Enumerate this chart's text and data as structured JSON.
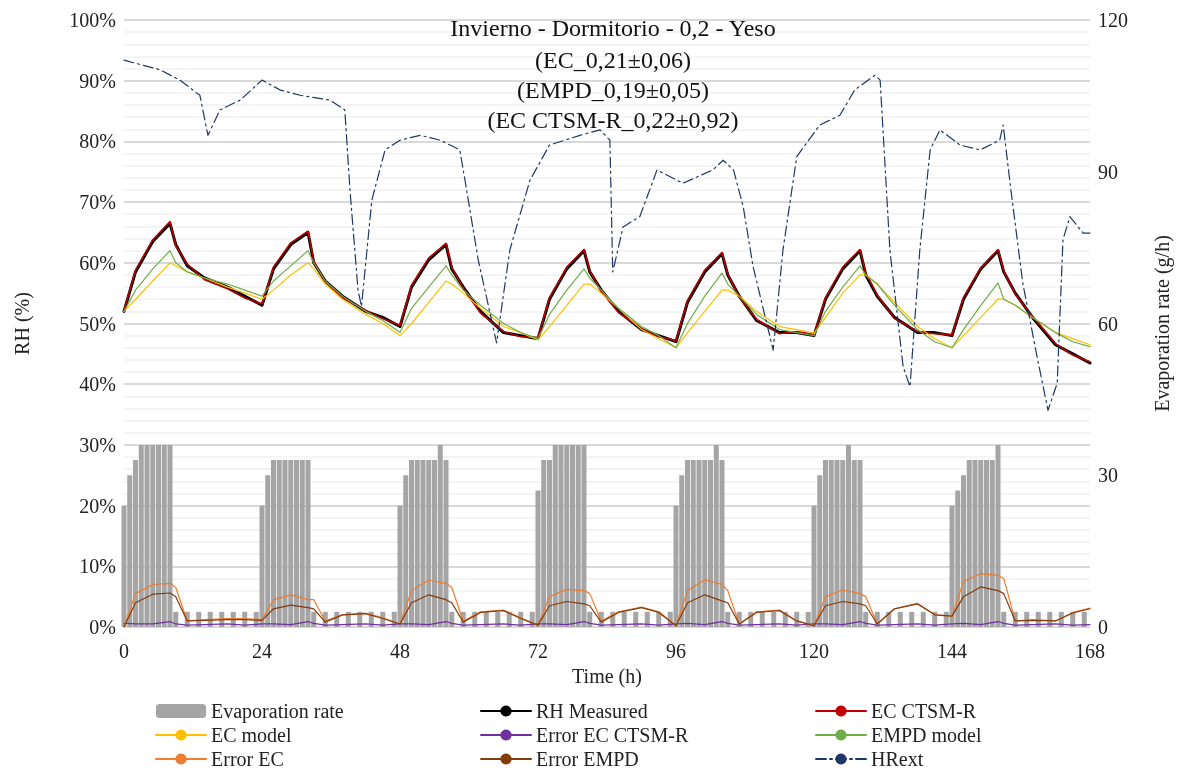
{
  "chart_data": {
    "type": "line",
    "title": "Invierno - Dormitorio - 0,2 - Yeso",
    "subtitle": "(EC_0,21±0,06)\n(EMPD_0,19±0,05)\n(EC CTSM-R_0,22±0,92)",
    "xlabel": "Time (h)",
    "ylabel": "RH (%)",
    "y2label": "Evaporation rate (g/h)",
    "xlim": [
      0,
      168
    ],
    "xticks": [
      0,
      24,
      48,
      72,
      96,
      120,
      144,
      168
    ],
    "ylim": [
      0,
      100
    ],
    "yticks": [
      {
        "value": 0,
        "label": "0%"
      },
      {
        "value": 10,
        "label": "10%"
      },
      {
        "value": 20,
        "label": "20%"
      },
      {
        "value": 30,
        "label": "30%"
      },
      {
        "value": 40,
        "label": "40%"
      },
      {
        "value": 50,
        "label": "50%"
      },
      {
        "value": 60,
        "label": "60%"
      },
      {
        "value": 70,
        "label": "70%"
      },
      {
        "value": 80,
        "label": "80%"
      },
      {
        "value": 90,
        "label": "90%"
      },
      {
        "value": 100,
        "label": "100%"
      }
    ],
    "y2lim": [
      0,
      120
    ],
    "y2ticks": [
      0,
      30,
      60,
      90,
      120
    ],
    "grid": "y",
    "legend": "bottom",
    "marker": "none",
    "x": [
      0,
      2,
      5,
      8,
      9,
      11,
      14,
      18,
      21,
      24,
      26,
      29,
      32,
      33,
      35,
      38,
      42,
      45,
      48,
      50,
      53,
      56,
      57,
      59,
      62,
      66,
      69,
      72,
      74,
      77,
      80,
      81,
      83,
      86,
      90,
      93,
      96,
      98,
      101,
      104,
      105,
      107,
      110,
      114,
      117,
      120,
      122,
      125,
      128,
      129,
      131,
      134,
      138,
      141,
      144,
      146,
      149,
      152,
      153,
      155,
      158,
      162,
      165,
      168
    ],
    "series": [
      {
        "name": "Evaporation rate",
        "type": "bar",
        "axis": "y2",
        "color": "#a5a5a5",
        "x": [
          0,
          1,
          2,
          3,
          4,
          5,
          6,
          7,
          8,
          9,
          10,
          11,
          12,
          13,
          14,
          15,
          16,
          17,
          18,
          19,
          20,
          21,
          22,
          23,
          24,
          25,
          26,
          27,
          28,
          29,
          30,
          31,
          32,
          33,
          34,
          35,
          36,
          37,
          38,
          39,
          40,
          41,
          42,
          43,
          44,
          45,
          46,
          47,
          48,
          49,
          50,
          51,
          52,
          53,
          54,
          55,
          56,
          57,
          58,
          59,
          60,
          61,
          62,
          63,
          64,
          65,
          66,
          67,
          68,
          69,
          70,
          71,
          72,
          73,
          74,
          75,
          76,
          77,
          78,
          79,
          80,
          81,
          82,
          83,
          84,
          85,
          86,
          87,
          88,
          89,
          90,
          91,
          92,
          93,
          94,
          95,
          96,
          97,
          98,
          99,
          100,
          101,
          102,
          103,
          104,
          105,
          106,
          107,
          108,
          109,
          110,
          111,
          112,
          113,
          114,
          115,
          116,
          117,
          118,
          119,
          120,
          121,
          122,
          123,
          124,
          125,
          126,
          127,
          128,
          129,
          130,
          131,
          132,
          133,
          134,
          135,
          136,
          137,
          138,
          139,
          140,
          141,
          142,
          143,
          144,
          145,
          146,
          147,
          148,
          149,
          150,
          151,
          152,
          153,
          154,
          155,
          156,
          157,
          158,
          159,
          160,
          161,
          162,
          163,
          164,
          165,
          166,
          167
        ],
        "values": [
          24,
          30,
          33,
          36,
          36,
          36,
          36,
          36,
          36,
          3,
          0,
          3,
          0,
          3,
          0,
          3,
          0,
          3,
          0,
          3,
          0,
          3,
          0,
          3,
          24,
          30,
          33,
          33,
          33,
          33,
          33,
          33,
          33,
          3,
          0,
          3,
          0,
          3,
          0,
          3,
          0,
          3,
          0,
          3,
          0,
          3,
          0,
          3,
          24,
          30,
          33,
          33,
          33,
          33,
          33,
          36,
          33,
          3,
          0,
          3,
          0,
          3,
          0,
          3,
          0,
          3,
          0,
          3,
          0,
          3,
          0,
          3,
          27,
          33,
          33,
          36,
          36,
          36,
          36,
          36,
          36,
          3,
          0,
          3,
          0,
          3,
          0,
          3,
          0,
          3,
          0,
          3,
          0,
          3,
          0,
          3,
          24,
          30,
          33,
          33,
          33,
          33,
          33,
          36,
          33,
          3,
          0,
          3,
          0,
          3,
          0,
          3,
          0,
          3,
          0,
          3,
          0,
          3,
          0,
          3,
          24,
          30,
          33,
          33,
          33,
          33,
          36,
          33,
          33,
          3,
          0,
          3,
          0,
          3,
          0,
          3,
          0,
          3,
          0,
          3,
          0,
          3,
          0,
          3,
          24,
          27,
          30,
          33,
          33,
          33,
          33,
          33,
          36,
          3,
          0,
          3,
          0,
          3,
          0,
          3,
          0,
          3,
          0,
          3,
          0,
          3,
          0,
          3
        ]
      },
      {
        "name": "RH Measured",
        "color": "#000000",
        "values": [
          52,
          58.5,
          63.5,
          66.5,
          63,
          59.5,
          57.5,
          56,
          54.5,
          53,
          59,
          63,
          65,
          60,
          57,
          54.5,
          52,
          51,
          49.5,
          56,
          60.5,
          63,
          59,
          56,
          52,
          48.5,
          48,
          47.5,
          54,
          59,
          62,
          58.5,
          55.5,
          52,
          49,
          48,
          47,
          53.5,
          58.5,
          61.5,
          58,
          54.5,
          50.5,
          48.5,
          48.5,
          48,
          54,
          59,
          62,
          58,
          54.5,
          51,
          48.5,
          48.5,
          48,
          54,
          59,
          62,
          58.5,
          55,
          51,
          46.5,
          45,
          43.5
        ]
      },
      {
        "name": "EC CTSM-R",
        "color": "#c00000",
        "values": [
          52.2,
          58.8,
          63.8,
          66.8,
          62.8,
          59.8,
          57.2,
          55.7,
          54.2,
          53.2,
          59.3,
          63.3,
          65.2,
          60.3,
          56.8,
          54.2,
          52.2,
          50.8,
          49.7,
          56.3,
          60.8,
          63.2,
          59.3,
          55.8,
          51.7,
          48.7,
          47.8,
          47.7,
          54.3,
          59.3,
          62.2,
          58.7,
          55.3,
          51.8,
          49.2,
          47.8,
          47.2,
          53.8,
          58.8,
          61.7,
          58.2,
          54.3,
          50.7,
          48.3,
          48.7,
          48.2,
          54.3,
          59.3,
          62.2,
          58.3,
          54.7,
          50.8,
          48.7,
          48.3,
          48.2,
          54.3,
          59.2,
          62.2,
          58.7,
          54.8,
          51.2,
          46.7,
          44.8,
          43.7
        ]
      },
      {
        "name": "EC model",
        "color": "#ffc000",
        "values": [
          52,
          54,
          57,
          60,
          59.5,
          58.5,
          57.5,
          56,
          55,
          54,
          55.5,
          58,
          60,
          59,
          56.5,
          54,
          51.5,
          50,
          48,
          50,
          53.5,
          57,
          56.5,
          55,
          52.5,
          49.5,
          48.5,
          47.3,
          49.5,
          53,
          56.5,
          56.5,
          55,
          52.5,
          49,
          47.5,
          46,
          48.5,
          52,
          55.5,
          55.5,
          54.5,
          52,
          49.5,
          49,
          48.4,
          51,
          55,
          58,
          58,
          56.5,
          53.5,
          49.5,
          47.5,
          46,
          48,
          51,
          54,
          54,
          53,
          51,
          48.5,
          47.5,
          46.5
        ]
      },
      {
        "name": "Error EC CTSM-R",
        "color": "#7030a0",
        "values": [
          0.6,
          0.5,
          0.5,
          0.9,
          0.5,
          0.3,
          0.4,
          0.5,
          0.3,
          0.5,
          0.5,
          0.4,
          0.9,
          0.6,
          0.3,
          0.4,
          0.5,
          0.3,
          0.5,
          0.5,
          0.4,
          0.9,
          0.6,
          0.3,
          0.4,
          0.5,
          0.3,
          0.5,
          0.5,
          0.4,
          0.9,
          0.6,
          0.3,
          0.4,
          0.5,
          0.3,
          0.5,
          0.6,
          0.4,
          0.9,
          0.6,
          0.3,
          0.4,
          0.5,
          0.3,
          0.5,
          0.5,
          0.4,
          0.9,
          0.6,
          0.3,
          0.4,
          0.5,
          0.3,
          0.5,
          0.6,
          0.4,
          0.9,
          0.6,
          0.3,
          0.4,
          0.5,
          0.3,
          0.4
        ]
      },
      {
        "name": "EMPD model",
        "color": "#70ad47",
        "values": [
          52,
          55.5,
          59,
          62,
          60,
          58.5,
          57.5,
          56.5,
          55.5,
          54.5,
          57,
          59.5,
          62,
          60,
          57,
          54.5,
          52,
          50.5,
          48.5,
          52.5,
          56,
          59.5,
          58,
          55.5,
          53,
          50,
          48.5,
          47.5,
          51.5,
          55.5,
          59,
          57.5,
          55.5,
          52.5,
          49.5,
          48,
          46,
          50,
          54.5,
          58.3,
          56.5,
          54.5,
          51.5,
          49,
          48.5,
          48,
          52,
          56,
          59.5,
          58,
          56.5,
          53,
          49,
          47,
          46,
          49,
          53,
          56.7,
          54,
          53,
          51,
          48.5,
          47,
          46.2
        ]
      },
      {
        "name": "Error EC",
        "color": "#ed7d31",
        "values": [
          0,
          5.5,
          7,
          7.2,
          6.5,
          1,
          1.2,
          1.4,
          1.4,
          1.2,
          4.5,
          5.3,
          4.5,
          4.5,
          1,
          2,
          2.3,
          1.5,
          0.5,
          6,
          7.7,
          7.2,
          6.5,
          1,
          2.5,
          2.8,
          1.5,
          0.3,
          5,
          6.2,
          6,
          5.5,
          1,
          2.5,
          3.3,
          2.5,
          0.2,
          6,
          7.8,
          7,
          6,
          0.5,
          2.5,
          2.8,
          1,
          0.2,
          5,
          6.1,
          5.5,
          5,
          0.5,
          3,
          3.9,
          2,
          1.8,
          7.5,
          8.8,
          8.5,
          8,
          1,
          1.2,
          1,
          2.4,
          3.1
        ]
      },
      {
        "name": "Error EMPD",
        "color": "#843c0c",
        "values": [
          0,
          4,
          5.4,
          5.6,
          5,
          1,
          1.1,
          1.2,
          1.2,
          1.1,
          3,
          3.6,
          3.2,
          3,
          0.8,
          2,
          2.2,
          1.4,
          0.5,
          4,
          5.3,
          4.5,
          4,
          0.8,
          2.4,
          2.7,
          1.4,
          0.3,
          3.5,
          4.2,
          3.8,
          3.5,
          0.8,
          2.4,
          3.2,
          2.4,
          0.2,
          4,
          5.3,
          4.3,
          4,
          0.5,
          2.4,
          2.7,
          1,
          0.2,
          3.5,
          4.2,
          3.8,
          3.5,
          0.5,
          3,
          3.8,
          2,
          1.8,
          5,
          6.6,
          6,
          5.5,
          1,
          1.1,
          1,
          2.3,
          3
        ]
      },
      {
        "name": "HRext",
        "color": "#1f3864",
        "line_style": "dashdot",
        "x": [
          0,
          1.9,
          6.3,
          9.7,
          13.2,
          14.6,
          16.7,
          20.2,
          24,
          27.1,
          30.6,
          35.8,
          38.4,
          39.3,
          40.7,
          41.3,
          43.1,
          45.4,
          48,
          51.5,
          55,
          58.4,
          59.3,
          61.6,
          64.8,
          67.1,
          70.6,
          74,
          79.3,
          82.8,
          84.5,
          85,
          86.8,
          89.7,
          92.7,
          97.2,
          102.4,
          104.2,
          106,
          107.7,
          109.4,
          112.9,
          114.6,
          117,
          121,
          124.5,
          127.1,
          130.6,
          131.5,
          133.2,
          135.5,
          136.7,
          138.4,
          140.2,
          141.9,
          145.4,
          148.9,
          152.3,
          152.9,
          154.1,
          156.3,
          158.8,
          160.7,
          162.3,
          163.3,
          164.5,
          166.8,
          168
        ],
        "values": [
          93.4,
          92.9,
          91.8,
          90.1,
          87.6,
          81,
          85.2,
          86.8,
          90.1,
          88.5,
          87.6,
          86.8,
          85.2,
          72,
          55.5,
          52.8,
          70.3,
          78.6,
          80.2,
          81,
          80.2,
          78.6,
          73.6,
          60.5,
          46.8,
          62.1,
          73.6,
          79.4,
          81,
          81.9,
          80.2,
          58.5,
          65.9,
          67.6,
          75.3,
          73.1,
          75.3,
          76.9,
          75.3,
          69.2,
          59.4,
          45.6,
          62.1,
          77.5,
          82.7,
          84.3,
          88.5,
          90.9,
          90.1,
          62.1,
          42.9,
          39.6,
          62.1,
          78.6,
          81.9,
          79.4,
          78.6,
          80.2,
          82.7,
          73.1,
          56.7,
          44.5,
          35.7,
          40.2,
          63.8,
          67.6,
          64.9,
          64.9
        ]
      }
    ]
  }
}
